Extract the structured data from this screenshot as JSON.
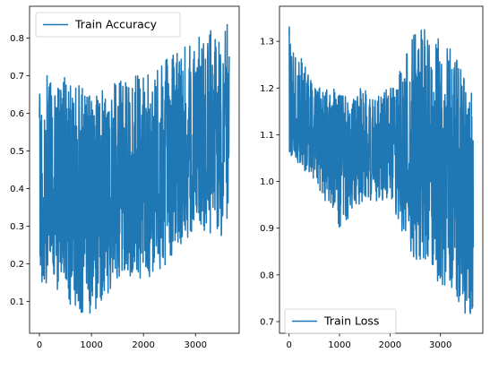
{
  "chart_data": [
    {
      "type": "line",
      "series": [
        {
          "name": "Train Accuracy",
          "color": "#1f77b4",
          "n_points": 3650,
          "x_range": [
            0,
            3650
          ],
          "envelope_x": [
            0,
            500,
            1000,
            1500,
            2000,
            2500,
            3000,
            3650
          ],
          "envelope_low": [
            0.15,
            0.1,
            0.05,
            0.15,
            0.15,
            0.2,
            0.3,
            0.25
          ],
          "envelope_high": [
            0.7,
            0.7,
            0.65,
            0.7,
            0.7,
            0.75,
            0.8,
            0.85
          ],
          "trend": [
            0.4,
            0.4,
            0.38,
            0.4,
            0.42,
            0.47,
            0.53,
            0.56
          ]
        }
      ],
      "legend": {
        "label": "Train Accuracy",
        "loc": "upper left"
      },
      "xticks": [
        0,
        1000,
        2000,
        3000
      ],
      "xtick_labels": [
        "0",
        "1000",
        "2000",
        "3000"
      ],
      "yticks": [
        0.1,
        0.2,
        0.3,
        0.4,
        0.5,
        0.6,
        0.7,
        0.8
      ],
      "ytick_labels": [
        "0.1",
        "0.2",
        "0.3",
        "0.4",
        "0.5",
        "0.6",
        "0.7",
        "0.8"
      ],
      "xlim": [
        -190,
        3840
      ],
      "ylim": [
        0.015,
        0.885
      ],
      "grid": false,
      "title": "",
      "xlabel": "",
      "ylabel": ""
    },
    {
      "type": "line",
      "series": [
        {
          "name": "Train Loss",
          "color": "#1f77b4",
          "n_points": 3650,
          "x_range": [
            0,
            3650
          ],
          "envelope_x": [
            0,
            500,
            1000,
            1500,
            2000,
            2500,
            3000,
            3650
          ],
          "envelope_low": [
            1.06,
            1.0,
            0.9,
            0.96,
            0.95,
            0.83,
            0.77,
            0.7
          ],
          "envelope_high": [
            1.345,
            1.2,
            1.2,
            1.2,
            1.2,
            1.33,
            1.32,
            1.2
          ],
          "trend": [
            1.1,
            1.09,
            1.08,
            1.08,
            1.07,
            1.04,
            1.0,
            0.99
          ]
        }
      ],
      "legend": {
        "label": "Train Loss",
        "loc": "lower left"
      },
      "xticks": [
        0,
        1000,
        2000,
        3000
      ],
      "xtick_labels": [
        "0",
        "1000",
        "2000",
        "3000"
      ],
      "yticks": [
        0.7,
        0.8,
        0.9,
        1.0,
        1.1,
        1.2,
        1.3
      ],
      "ytick_labels": [
        "0.7",
        "0.8",
        "0.9",
        "1.0",
        "1.1",
        "1.2",
        "1.3"
      ],
      "xlim": [
        -190,
        3840
      ],
      "ylim": [
        0.675,
        1.375
      ],
      "grid": false,
      "title": "",
      "xlabel": "",
      "ylabel": ""
    }
  ]
}
